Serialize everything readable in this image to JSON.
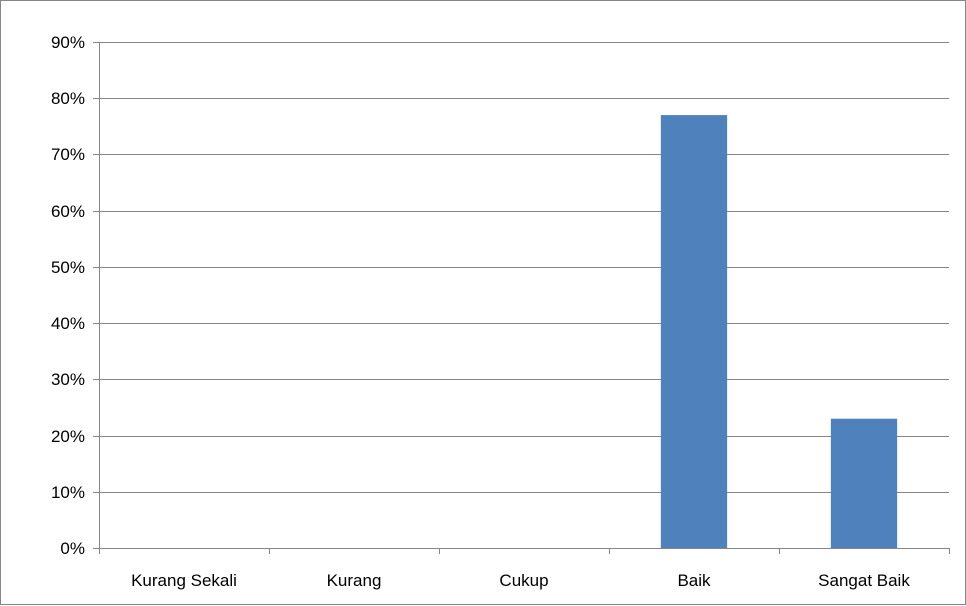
{
  "chart_data": {
    "type": "bar",
    "categories": [
      "Kurang Sekali",
      "Kurang",
      "Cukup",
      "Baik",
      "Sangat Baik"
    ],
    "values": [
      0,
      0,
      0,
      77,
      23
    ],
    "value_unit": "%",
    "title": "",
    "xlabel": "",
    "ylabel": "",
    "ylim": [
      0,
      90
    ],
    "yticks": [
      0,
      10,
      20,
      30,
      40,
      50,
      60,
      70,
      80,
      90
    ],
    "ytick_labels": [
      "0%",
      "10%",
      "20%",
      "30%",
      "40%",
      "50%",
      "60%",
      "70%",
      "80%",
      "90%"
    ],
    "grid": true,
    "legend": "none",
    "colors": {
      "bar": "#4F81BD",
      "grid": "#868686",
      "axis": "#868686",
      "border": "#868686"
    }
  }
}
